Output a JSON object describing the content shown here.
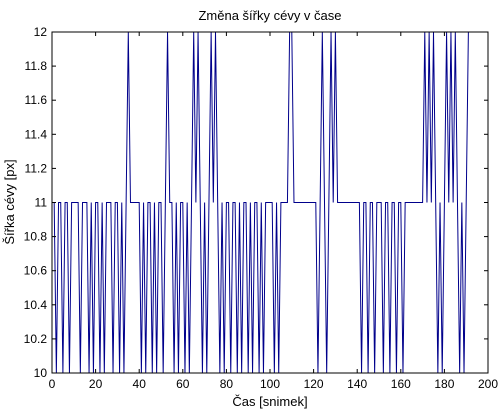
{
  "chart_data": {
    "type": "line",
    "title": "Změna šířky cévy v čase",
    "xlabel": "Čas [snimek]",
    "ylabel": "Šířka cévy [px]",
    "xlim": [
      0,
      200
    ],
    "ylim": [
      10,
      12
    ],
    "grid": false,
    "x_ticks": [
      0,
      20,
      40,
      60,
      80,
      100,
      120,
      140,
      160,
      180,
      200
    ],
    "y_ticks": [
      10,
      10.2,
      10.4,
      10.6,
      10.8,
      11,
      11.2,
      11.4,
      11.6,
      11.8,
      12
    ],
    "x_tick_labels": [
      "0",
      "20",
      "40",
      "60",
      "80",
      "100",
      "120",
      "140",
      "160",
      "180",
      "200"
    ],
    "y_tick_labels": [
      "10",
      "10.2",
      "10.4",
      "10.6",
      "10.8",
      "11",
      "11.2",
      "11.4",
      "11.6",
      "11.8",
      "12"
    ],
    "series_color": "#00008B",
    "series": [
      {
        "x": [
          1,
          2,
          3,
          4,
          5,
          6,
          7,
          8,
          9,
          10,
          11,
          12,
          13,
          14,
          15,
          16,
          17,
          18,
          19,
          20,
          21,
          22,
          23,
          24,
          25,
          26,
          27,
          28,
          29,
          30,
          31,
          32,
          33,
          34,
          35,
          36,
          37,
          38,
          39,
          40,
          41,
          42,
          43,
          44,
          45,
          46,
          47,
          48,
          49,
          50,
          51,
          52,
          53,
          54,
          55,
          56,
          57,
          58,
          59,
          60,
          61,
          62,
          63,
          64,
          65,
          66,
          67,
          68,
          69,
          70,
          71,
          72,
          73,
          74,
          75,
          76,
          77,
          78,
          79,
          80,
          81,
          82,
          83,
          84,
          85,
          86,
          87,
          88,
          89,
          90,
          91,
          92,
          93,
          94,
          95,
          96,
          97,
          98,
          99,
          100,
          101,
          102,
          103,
          104,
          105,
          106,
          107,
          108,
          109,
          110,
          111,
          112,
          113,
          114,
          115,
          116,
          117,
          118,
          119,
          120,
          121,
          122,
          123,
          124,
          125,
          126,
          127,
          128,
          129,
          130,
          131,
          132,
          133,
          134,
          135,
          136,
          137,
          138,
          139,
          140,
          141,
          142,
          143,
          144,
          145,
          146,
          147,
          148,
          149,
          150,
          151,
          152,
          153,
          154,
          155,
          156,
          157,
          158,
          159,
          160,
          161,
          162,
          163,
          164,
          165,
          166,
          167,
          168,
          169,
          170,
          171,
          172,
          173,
          174,
          175,
          176,
          177,
          178,
          179,
          180,
          181,
          182,
          183,
          184,
          185,
          186,
          187,
          188,
          189,
          190,
          191
        ],
        "y": [
          11,
          10,
          11,
          11,
          10,
          11,
          11,
          10,
          11,
          11,
          11,
          11,
          10,
          11,
          11,
          11,
          10,
          11,
          10,
          11,
          11,
          10,
          11,
          10,
          11,
          11,
          11,
          10,
          11,
          11,
          10,
          11,
          10,
          11,
          12,
          11,
          11,
          11,
          11,
          11,
          10,
          11,
          10,
          11,
          11,
          10,
          11,
          10,
          11,
          11,
          10,
          11,
          12,
          11,
          11,
          10,
          11,
          10,
          11,
          11,
          10,
          11,
          10,
          11,
          12,
          11,
          12,
          11,
          10,
          11,
          10,
          11,
          12,
          11,
          12,
          11,
          10,
          11,
          10,
          11,
          11,
          10,
          11,
          11,
          10,
          11,
          10,
          11,
          11,
          10,
          11,
          10,
          11,
          11,
          10,
          11,
          10,
          11,
          11,
          11,
          11,
          10,
          11,
          10,
          11,
          11,
          11,
          11,
          12,
          12,
          11,
          11,
          11,
          11,
          11,
          11,
          11,
          11,
          11,
          11,
          11,
          10,
          11,
          12,
          11,
          10,
          11,
          12,
          11,
          12,
          11,
          11,
          11,
          11,
          11,
          11,
          11,
          11,
          11,
          11,
          11,
          10,
          11,
          11,
          10,
          11,
          11,
          10,
          11,
          11,
          11,
          10,
          11,
          11,
          10,
          11,
          11,
          10,
          11,
          11,
          10,
          11,
          11,
          11,
          11,
          11,
          11,
          11,
          11,
          11,
          12,
          11,
          12,
          11,
          12,
          11,
          10,
          11,
          10,
          11,
          12,
          11,
          12,
          11,
          12,
          11,
          10,
          11,
          10,
          11,
          12
        ]
      }
    ]
  }
}
